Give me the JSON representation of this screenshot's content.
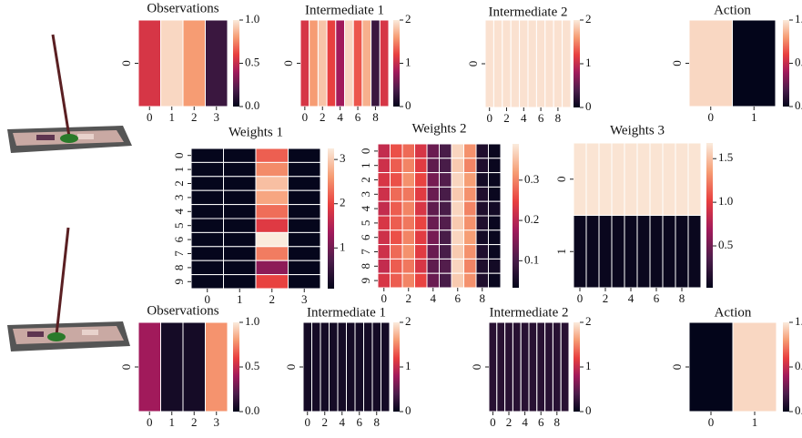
{
  "chart_data": [
    {
      "type": "heatmap",
      "title": "Observations",
      "z": [
        [
          0.55,
          0.95,
          0.8,
          0.15
        ]
      ],
      "zlim": [
        0,
        1
      ],
      "xticks": [
        0,
        1,
        2,
        3
      ],
      "yticks": [
        0
      ],
      "cticks": [
        {
          "value": 0,
          "label": "0.0"
        },
        {
          "value": 0.5,
          "label": "0.5"
        },
        {
          "value": 1,
          "label": "1.0"
        }
      ]
    },
    {
      "type": "heatmap",
      "title": "Intermediate 1",
      "z": [
        [
          1.1,
          1.6,
          1.8,
          1.2,
          0.8,
          1.9,
          1.3,
          1.7,
          0.3,
          1.1
        ]
      ],
      "zlim": [
        0,
        2
      ],
      "xticks": [
        0,
        2,
        4,
        6,
        8
      ],
      "yticks": [
        0
      ],
      "cticks": [
        0,
        1,
        2
      ]
    },
    {
      "type": "heatmap",
      "title": "Intermediate 2",
      "z": [
        [
          1.95,
          1.95,
          1.95,
          1.95,
          1.95,
          1.95,
          1.95,
          1.95,
          1.95,
          1.95
        ]
      ],
      "zlim": [
        0,
        2
      ],
      "xticks": [
        0,
        2,
        4,
        6,
        8
      ],
      "yticks": [
        0
      ],
      "cticks": [
        0,
        1,
        2
      ]
    },
    {
      "type": "heatmap",
      "title": "Action",
      "z": [
        [
          0.95,
          0.0
        ]
      ],
      "zlim": [
        0,
        1
      ],
      "xticks": [
        0,
        1
      ],
      "yticks": [
        0
      ],
      "cticks": [
        {
          "value": 0,
          "label": "0.0"
        },
        {
          "value": 0.5,
          "label": "0.5"
        },
        {
          "value": 1,
          "label": "1.0"
        }
      ]
    },
    {
      "type": "heatmap",
      "title": "Weights 1",
      "z": [
        [
          0.1,
          0.1,
          2.2,
          0.1
        ],
        [
          0.1,
          0.1,
          2.5,
          0.1
        ],
        [
          0.1,
          0.1,
          2.9,
          0.1
        ],
        [
          0.1,
          0.1,
          2.7,
          0.1
        ],
        [
          0.1,
          0.1,
          2.3,
          0.1
        ],
        [
          0.1,
          0.1,
          1.9,
          0.1
        ],
        [
          0.1,
          0.1,
          3.25,
          0.1
        ],
        [
          0.1,
          0.1,
          2.4,
          0.1
        ],
        [
          0.1,
          0.1,
          1.2,
          0.1
        ],
        [
          0.1,
          0.1,
          2.0,
          0.1
        ]
      ],
      "zlim": [
        0.08,
        3.25
      ],
      "xticks": [
        0,
        1,
        2,
        3
      ],
      "yticks": [
        0,
        1,
        2,
        3,
        4,
        5,
        6,
        7,
        8,
        9
      ],
      "cticks": [
        1,
        2,
        3
      ]
    },
    {
      "type": "heatmap",
      "title": "Weights 2",
      "z": [
        [
          0.21,
          0.26,
          0.28,
          0.23,
          0.13,
          0.1,
          0.37,
          0.31,
          0.06,
          0.04
        ],
        [
          0.22,
          0.27,
          0.3,
          0.24,
          0.12,
          0.1,
          0.36,
          0.3,
          0.06,
          0.04
        ],
        [
          0.23,
          0.26,
          0.31,
          0.25,
          0.14,
          0.11,
          0.37,
          0.32,
          0.05,
          0.04
        ],
        [
          0.22,
          0.28,
          0.29,
          0.24,
          0.13,
          0.1,
          0.36,
          0.31,
          0.06,
          0.04
        ],
        [
          0.21,
          0.27,
          0.3,
          0.23,
          0.12,
          0.1,
          0.37,
          0.3,
          0.06,
          0.05
        ],
        [
          0.23,
          0.27,
          0.29,
          0.25,
          0.13,
          0.11,
          0.36,
          0.31,
          0.06,
          0.04
        ],
        [
          0.22,
          0.26,
          0.3,
          0.24,
          0.14,
          0.1,
          0.37,
          0.32,
          0.05,
          0.04
        ],
        [
          0.22,
          0.28,
          0.31,
          0.24,
          0.13,
          0.1,
          0.36,
          0.31,
          0.06,
          0.04
        ],
        [
          0.21,
          0.27,
          0.29,
          0.23,
          0.12,
          0.11,
          0.37,
          0.3,
          0.06,
          0.05
        ],
        [
          0.23,
          0.27,
          0.3,
          0.25,
          0.13,
          0.1,
          0.36,
          0.31,
          0.06,
          0.04
        ]
      ],
      "zlim": [
        0.033,
        0.39
      ],
      "xticks": [
        0,
        2,
        4,
        6,
        8
      ],
      "yticks": [
        0,
        1,
        2,
        3,
        4,
        5,
        6,
        7,
        8,
        9
      ],
      "cticks": [
        0.1,
        0.2,
        0.3
      ]
    },
    {
      "type": "heatmap",
      "title": "Weights 3",
      "z": [
        [
          1.65,
          1.65,
          1.65,
          1.65,
          1.65,
          1.65,
          1.65,
          1.65,
          1.65,
          1.65
        ],
        [
          0.05,
          0.05,
          0.05,
          0.05,
          0.05,
          0.05,
          0.05,
          0.05,
          0.05,
          0.05
        ]
      ],
      "zlim": [
        0.02,
        1.68
      ],
      "xticks": [
        0,
        2,
        4,
        6,
        8
      ],
      "yticks": [
        0,
        1
      ],
      "cticks": [
        0.5,
        {
          "value": 1,
          "label": "1.0"
        },
        1.5
      ]
    },
    {
      "type": "heatmap",
      "title": "Observations",
      "z": [
        [
          0.4,
          0.05,
          0.05,
          0.78
        ]
      ],
      "zlim": [
        0,
        1
      ],
      "xticks": [
        0,
        1,
        2,
        3
      ],
      "yticks": [
        0
      ],
      "cticks": [
        {
          "value": 0,
          "label": "0.0"
        },
        {
          "value": 0.5,
          "label": "0.5"
        },
        {
          "value": 1,
          "label": "1.0"
        }
      ]
    },
    {
      "type": "heatmap",
      "title": "Intermediate 1",
      "z": [
        [
          0.1,
          0.1,
          0.1,
          0.1,
          0.1,
          0.1,
          0.1,
          0.1,
          0.1,
          0.1
        ]
      ],
      "zlim": [
        0,
        2
      ],
      "xticks": [
        0,
        2,
        4,
        6,
        8
      ],
      "yticks": [
        0
      ],
      "cticks": [
        0,
        1,
        2
      ]
    },
    {
      "type": "heatmap",
      "title": "Intermediate 2",
      "z": [
        [
          0.2,
          0.2,
          0.2,
          0.2,
          0.2,
          0.2,
          0.2,
          0.2,
          0.2,
          0.2
        ]
      ],
      "zlim": [
        0,
        2
      ],
      "xticks": [
        0,
        2,
        4,
        6,
        8
      ],
      "yticks": [
        0
      ],
      "cticks": [
        0,
        1,
        2
      ]
    },
    {
      "type": "heatmap",
      "title": "Action",
      "z": [
        [
          0.0,
          0.95
        ]
      ],
      "zlim": [
        0,
        1
      ],
      "xticks": [
        0,
        1
      ],
      "yticks": [
        0
      ],
      "cticks": [
        {
          "value": 0,
          "label": "0.0"
        },
        {
          "value": 0.5,
          "label": "0.5"
        },
        {
          "value": 1,
          "label": "1.0"
        }
      ]
    }
  ]
}
